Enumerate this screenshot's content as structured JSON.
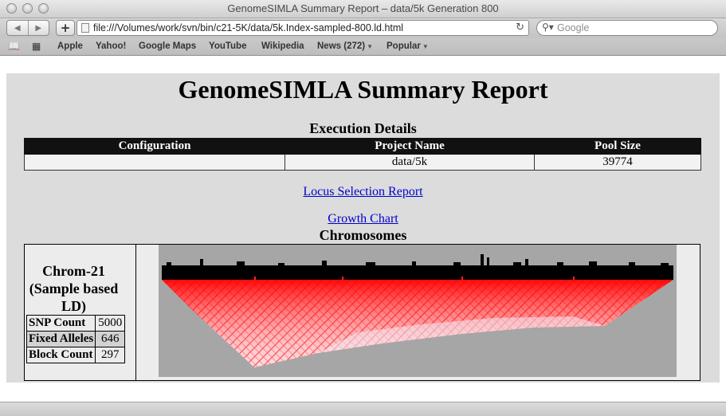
{
  "window": {
    "title": "GenomeSIMLA Summary Report – data/5k Generation 800"
  },
  "toolbar": {
    "back_icon": "◀",
    "forward_icon": "▶",
    "add_icon": "+",
    "url": "file:///Volumes/work/svn/bin/c21-5K/data/5k.Index-sampled-800.ld.html",
    "reload_icon": "↻",
    "search_placeholder": "Google"
  },
  "bookmarks": {
    "items": [
      {
        "label": "Apple"
      },
      {
        "label": "Yahoo!"
      },
      {
        "label": "Google Maps"
      },
      {
        "label": "YouTube"
      },
      {
        "label": "Wikipedia"
      },
      {
        "label": "News (272)",
        "has_menu": true
      },
      {
        "label": "Popular",
        "has_menu": true
      }
    ]
  },
  "page": {
    "title": "GenomeSIMLA Summary Report",
    "execution_title": "Execution Details",
    "execution_table": {
      "headers": [
        "Configuration",
        "Project Name",
        "Pool Size"
      ],
      "row": [
        "",
        "data/5k",
        "39774"
      ]
    },
    "links": {
      "locus_selection": "Locus Selection Report",
      "growth_chart": "Growth Chart"
    },
    "chromosomes_title": "Chromosomes",
    "chromosome": {
      "name": "Chrom-21 (Sample based LD)",
      "stats": [
        {
          "label": "SNP Count",
          "value": "5000"
        },
        {
          "label": "Fixed Alleles",
          "value": "646"
        },
        {
          "label": "Block Count",
          "value": "297"
        }
      ]
    }
  },
  "colors": {
    "header_bg": "#111111",
    "link": "#0000cc",
    "ld_strong": "#ff0000",
    "plot_bg": "#a6a6a6"
  }
}
